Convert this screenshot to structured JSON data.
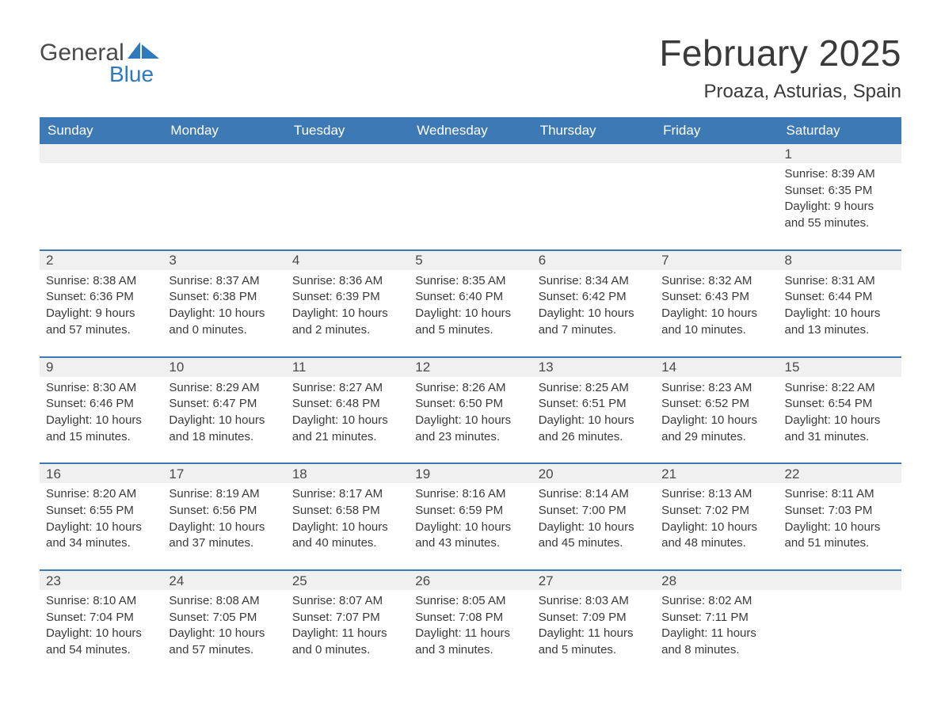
{
  "brand": {
    "word1": "General",
    "word2": "Blue"
  },
  "colors": {
    "header_bg": "#3c79b5",
    "header_text": "#ffffff",
    "accent": "#3c79b5",
    "daynum_bg": "#f0f0f0",
    "text": "#3a3a3a",
    "logo_gray": "#4a4a4a",
    "logo_blue": "#2f79bd",
    "background": "#ffffff"
  },
  "typography": {
    "title_fontsize": 46,
    "subtitle_fontsize": 24,
    "dayhead_fontsize": 17,
    "daynum_fontsize": 17,
    "detail_fontsize": 15
  },
  "calendar": {
    "type": "table",
    "title": "February 2025",
    "location": "Proaza, Asturias, Spain",
    "columns": [
      "Sunday",
      "Monday",
      "Tuesday",
      "Wednesday",
      "Thursday",
      "Friday",
      "Saturday"
    ],
    "weeks": [
      [
        null,
        null,
        null,
        null,
        null,
        null,
        {
          "n": "1",
          "sr": "8:39 AM",
          "ss": "6:35 PM",
          "dl1": "9 hours",
          "dl2": "and 55 minutes."
        }
      ],
      [
        {
          "n": "2",
          "sr": "8:38 AM",
          "ss": "6:36 PM",
          "dl1": "9 hours",
          "dl2": "and 57 minutes."
        },
        {
          "n": "3",
          "sr": "8:37 AM",
          "ss": "6:38 PM",
          "dl1": "10 hours",
          "dl2": "and 0 minutes."
        },
        {
          "n": "4",
          "sr": "8:36 AM",
          "ss": "6:39 PM",
          "dl1": "10 hours",
          "dl2": "and 2 minutes."
        },
        {
          "n": "5",
          "sr": "8:35 AM",
          "ss": "6:40 PM",
          "dl1": "10 hours",
          "dl2": "and 5 minutes."
        },
        {
          "n": "6",
          "sr": "8:34 AM",
          "ss": "6:42 PM",
          "dl1": "10 hours",
          "dl2": "and 7 minutes."
        },
        {
          "n": "7",
          "sr": "8:32 AM",
          "ss": "6:43 PM",
          "dl1": "10 hours",
          "dl2": "and 10 minutes."
        },
        {
          "n": "8",
          "sr": "8:31 AM",
          "ss": "6:44 PM",
          "dl1": "10 hours",
          "dl2": "and 13 minutes."
        }
      ],
      [
        {
          "n": "9",
          "sr": "8:30 AM",
          "ss": "6:46 PM",
          "dl1": "10 hours",
          "dl2": "and 15 minutes."
        },
        {
          "n": "10",
          "sr": "8:29 AM",
          "ss": "6:47 PM",
          "dl1": "10 hours",
          "dl2": "and 18 minutes."
        },
        {
          "n": "11",
          "sr": "8:27 AM",
          "ss": "6:48 PM",
          "dl1": "10 hours",
          "dl2": "and 21 minutes."
        },
        {
          "n": "12",
          "sr": "8:26 AM",
          "ss": "6:50 PM",
          "dl1": "10 hours",
          "dl2": "and 23 minutes."
        },
        {
          "n": "13",
          "sr": "8:25 AM",
          "ss": "6:51 PM",
          "dl1": "10 hours",
          "dl2": "and 26 minutes."
        },
        {
          "n": "14",
          "sr": "8:23 AM",
          "ss": "6:52 PM",
          "dl1": "10 hours",
          "dl2": "and 29 minutes."
        },
        {
          "n": "15",
          "sr": "8:22 AM",
          "ss": "6:54 PM",
          "dl1": "10 hours",
          "dl2": "and 31 minutes."
        }
      ],
      [
        {
          "n": "16",
          "sr": "8:20 AM",
          "ss": "6:55 PM",
          "dl1": "10 hours",
          "dl2": "and 34 minutes."
        },
        {
          "n": "17",
          "sr": "8:19 AM",
          "ss": "6:56 PM",
          "dl1": "10 hours",
          "dl2": "and 37 minutes."
        },
        {
          "n": "18",
          "sr": "8:17 AM",
          "ss": "6:58 PM",
          "dl1": "10 hours",
          "dl2": "and 40 minutes."
        },
        {
          "n": "19",
          "sr": "8:16 AM",
          "ss": "6:59 PM",
          "dl1": "10 hours",
          "dl2": "and 43 minutes."
        },
        {
          "n": "20",
          "sr": "8:14 AM",
          "ss": "7:00 PM",
          "dl1": "10 hours",
          "dl2": "and 45 minutes."
        },
        {
          "n": "21",
          "sr": "8:13 AM",
          "ss": "7:02 PM",
          "dl1": "10 hours",
          "dl2": "and 48 minutes."
        },
        {
          "n": "22",
          "sr": "8:11 AM",
          "ss": "7:03 PM",
          "dl1": "10 hours",
          "dl2": "and 51 minutes."
        }
      ],
      [
        {
          "n": "23",
          "sr": "8:10 AM",
          "ss": "7:04 PM",
          "dl1": "10 hours",
          "dl2": "and 54 minutes."
        },
        {
          "n": "24",
          "sr": "8:08 AM",
          "ss": "7:05 PM",
          "dl1": "10 hours",
          "dl2": "and 57 minutes."
        },
        {
          "n": "25",
          "sr": "8:07 AM",
          "ss": "7:07 PM",
          "dl1": "11 hours",
          "dl2": "and 0 minutes."
        },
        {
          "n": "26",
          "sr": "8:05 AM",
          "ss": "7:08 PM",
          "dl1": "11 hours",
          "dl2": "and 3 minutes."
        },
        {
          "n": "27",
          "sr": "8:03 AM",
          "ss": "7:09 PM",
          "dl1": "11 hours",
          "dl2": "and 5 minutes."
        },
        {
          "n": "28",
          "sr": "8:02 AM",
          "ss": "7:11 PM",
          "dl1": "11 hours",
          "dl2": "and 8 minutes."
        },
        null
      ]
    ],
    "labels": {
      "sunrise": "Sunrise:",
      "sunset": "Sunset:",
      "daylight": "Daylight:"
    }
  }
}
